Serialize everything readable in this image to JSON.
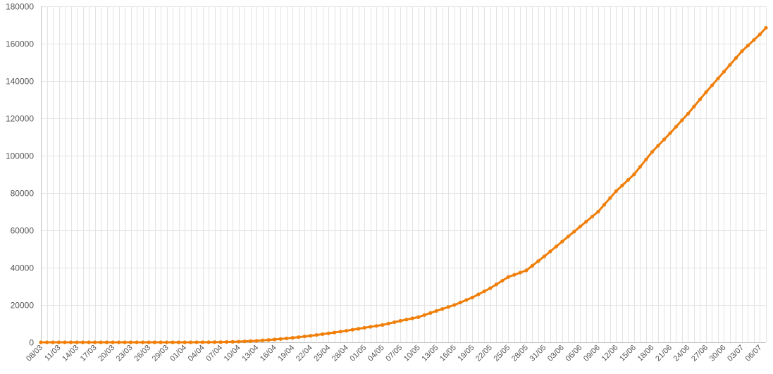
{
  "chart_data": {
    "type": "line",
    "title": "",
    "xlabel": "",
    "ylabel": "",
    "ylim": [
      0,
      180000
    ],
    "yticks": [
      "0",
      "20000",
      "40000",
      "60000",
      "80000",
      "100000",
      "120000",
      "140000",
      "160000",
      "180000"
    ],
    "grid": true,
    "legend": "none",
    "x_start": "08/03",
    "x_end": "07/07",
    "xticks": [
      "08/03",
      "11/03",
      "14/03",
      "17/03",
      "20/03",
      "23/03",
      "26/03",
      "29/03",
      "01/04",
      "04/04",
      "07/04",
      "10/04",
      "13/04",
      "16/04",
      "19/04",
      "22/04",
      "25/04",
      "28/04",
      "01/05",
      "04/05",
      "07/05",
      "10/05",
      "13/05",
      "16/05",
      "19/05",
      "22/05",
      "25/05",
      "28/05",
      "31/05",
      "03/06",
      "06/06",
      "09/06",
      "12/06",
      "15/06",
      "18/06",
      "21/06",
      "24/06",
      "27/06",
      "30/06",
      "03/07",
      "06/07"
    ],
    "series": [
      {
        "color": "#f07f0a",
        "anchors": [
          [
            "08/03",
            0
          ],
          [
            "01/04",
            0
          ],
          [
            "07/04",
            100
          ],
          [
            "10/04",
            350
          ],
          [
            "13/04",
            800
          ],
          [
            "16/04",
            1500
          ],
          [
            "19/04",
            2400
          ],
          [
            "22/04",
            3500
          ],
          [
            "25/04",
            4800
          ],
          [
            "28/04",
            6200
          ],
          [
            "01/05",
            7800
          ],
          [
            "04/05",
            9300
          ],
          [
            "07/05",
            11500
          ],
          [
            "10/05",
            13500
          ],
          [
            "13/05",
            16800
          ],
          [
            "16/05",
            20000
          ],
          [
            "19/05",
            24000
          ],
          [
            "22/05",
            29000
          ],
          [
            "25/05",
            35000
          ],
          [
            "28/05",
            38500
          ],
          [
            "31/05",
            46000
          ],
          [
            "03/06",
            54000
          ],
          [
            "06/06",
            62000
          ],
          [
            "09/06",
            70000
          ],
          [
            "12/06",
            81000
          ],
          [
            "15/06",
            90000
          ],
          [
            "18/06",
            102000
          ],
          [
            "21/06",
            112000
          ],
          [
            "24/06",
            122500
          ],
          [
            "27/06",
            134000
          ],
          [
            "30/06",
            145000
          ],
          [
            "03/07",
            156000
          ],
          [
            "06/07",
            165000
          ],
          [
            "07/07",
            168500
          ]
        ]
      }
    ]
  }
}
